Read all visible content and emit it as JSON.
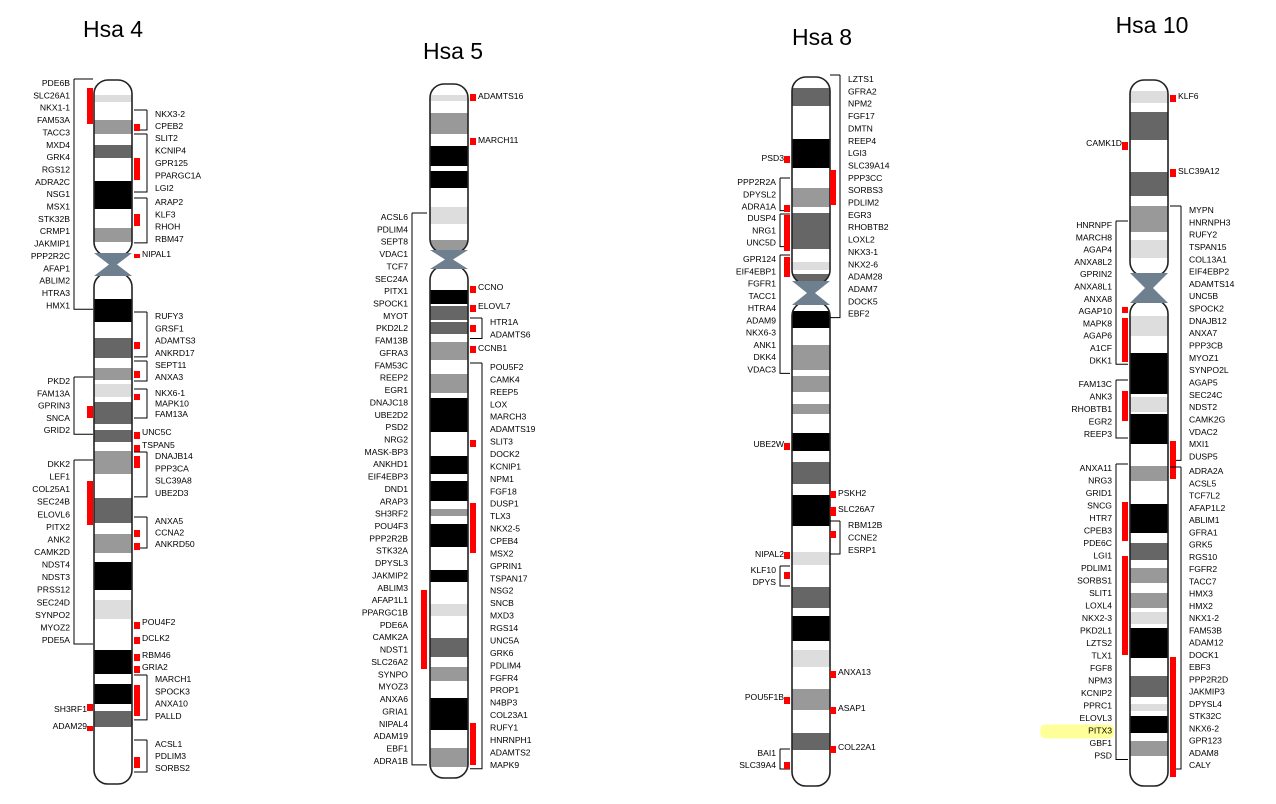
{
  "colors": {
    "band_black": "#000000",
    "band_dark": "#666666",
    "band_mid": "#999999",
    "band_light": "#dddddd",
    "centromere": "#6e7f8f",
    "marker": "#ff0000",
    "highlight": "#ffff99",
    "line": "#000000"
  },
  "chromosomes": [
    {
      "title": "Hsa 4",
      "groups": [
        {
          "side": "left",
          "genes": [
            "PDE6B",
            "SLC26A1",
            "NKX1-1",
            "FAM53A",
            "TACC3",
            "MXD4",
            "GRK4",
            "RGS12",
            "ADRA2C",
            "NSG1",
            "MSX1",
            "STK32B",
            "CRMP1",
            "JAKMIP1",
            "PPP2R2C",
            "AFAP1",
            "ABLIM2",
            "HTRA3",
            "HMX1"
          ]
        },
        {
          "side": "right",
          "genes": [
            "NKX3-2",
            "CPEB2"
          ]
        },
        {
          "side": "right",
          "genes": [
            "SLIT2",
            "KCNIP4",
            "GPR125",
            "PPARGC1A",
            "LGI2"
          ]
        },
        {
          "side": "right",
          "genes": [
            "ARAP2",
            "KLF3",
            "RHOH",
            "RBM47"
          ]
        },
        {
          "side": "right",
          "genes": [
            "NIPAL1"
          ]
        },
        {
          "side": "right",
          "genes": [
            "RUFY3",
            "GRSF1",
            "ADAMTS3",
            "ANKRD17"
          ]
        },
        {
          "side": "right",
          "genes": [
            "SEPT11",
            "ANXA3"
          ]
        },
        {
          "side": "left",
          "genes": [
            "PKD2",
            "FAM13A",
            "GPRIN3",
            "SNCA",
            "GRID2"
          ]
        },
        {
          "side": "right",
          "genes": [
            "NKX6-1",
            "MAPK10",
            "FAM13A"
          ]
        },
        {
          "side": "right",
          "genes": [
            "UNC5C"
          ]
        },
        {
          "side": "right",
          "genes": [
            "TSPAN5"
          ]
        },
        {
          "side": "right",
          "genes": [
            "DNAJB14",
            "PPP3CA",
            "SLC39A8",
            "UBE2D3"
          ]
        },
        {
          "side": "left",
          "genes": [
            "DKK2",
            "LEF1",
            "COL25A1",
            "SEC24B",
            "ELOVL6",
            "PITX2",
            "ANK2",
            "CAMK2D",
            "NDST4",
            "NDST3",
            "PRSS12",
            "SEC24D",
            "SYNPO2",
            "MYOZ2",
            "PDE5A"
          ]
        },
        {
          "side": "right",
          "genes": [
            "ANXA5",
            "CCNA2",
            "ANKRD50"
          ]
        },
        {
          "side": "right",
          "genes": [
            "POU4F2"
          ]
        },
        {
          "side": "right",
          "genes": [
            "DCLK2"
          ]
        },
        {
          "side": "right",
          "genes": [
            "RBM46"
          ]
        },
        {
          "side": "right",
          "genes": [
            "GRIA2"
          ]
        },
        {
          "side": "right",
          "genes": [
            "MARCH1",
            "SPOCK3",
            "ANXA10",
            "PALLD"
          ]
        },
        {
          "side": "left",
          "genes": [
            "SH3RF1"
          ]
        },
        {
          "side": "left",
          "genes": [
            "ADAM29"
          ]
        },
        {
          "side": "right",
          "genes": [
            "ACSL1",
            "PDLIM3",
            "SORBS2"
          ]
        }
      ]
    },
    {
      "title": "Hsa 5",
      "groups": [
        {
          "side": "right",
          "genes": [
            "ADAMTS16"
          ]
        },
        {
          "side": "right",
          "genes": [
            "MARCH11"
          ]
        },
        {
          "side": "left",
          "genes": [
            "ACSL6",
            "PDLIM4",
            "SEPT8",
            "VDAC1",
            "TCF7",
            "SEC24A",
            "PITX1",
            "SPOCK1",
            "MYOT",
            "PKD2L2",
            "FAM13B",
            "GFRA3",
            "FAM53C",
            "REEP2",
            "EGR1",
            "DNAJC18",
            "UBE2D2",
            "PSD2",
            "NRG2",
            "MASK-BP3",
            "ANKHD1",
            "EIF4EBP3",
            "DND1",
            "ARAP3",
            "SH3RF2",
            "POU4F3",
            "PPP2R2B",
            "STK32A",
            "DPYSL3",
            "JAKMIP2",
            "ABLIM3",
            "AFAP1L1",
            "PPARGC1B",
            "PDE6A",
            "CAMK2A",
            "NDST1",
            "SLC26A2",
            "SYNPO",
            "MYOZ3",
            "ANXA6",
            "GRIA1",
            "NIPAL4",
            "ADAM19",
            "EBF1",
            "ADRA1B"
          ]
        },
        {
          "side": "right",
          "genes": [
            "CCNO"
          ]
        },
        {
          "side": "right",
          "genes": [
            "ELOVL7"
          ]
        },
        {
          "side": "right",
          "genes": [
            "HTR1A",
            "ADAMTS6"
          ]
        },
        {
          "side": "right",
          "genes": [
            "CCNB1"
          ]
        },
        {
          "side": "right",
          "genes": [
            "POU5F2",
            "CAMK4",
            "REEP5",
            "LOX",
            "MARCH3",
            "ADAMTS19",
            "SLIT3",
            "DOCK2",
            "KCNIP1",
            "NPM1",
            "FGF18",
            "DUSP1",
            "TLX3",
            "NKX2-5",
            "CPEB4",
            "MSX2",
            "GPRIN1",
            "TSPAN17",
            "NSG2",
            "SNCB",
            "MXD3",
            "RGS14",
            "UNC5A",
            "GRK6",
            "PDLIM4",
            "FGFR4",
            "PROP1",
            "N4BP3",
            "COL23A1",
            "RUFY1",
            "HNRNPH1",
            "ADAMTS2",
            "MAPK9"
          ]
        }
      ]
    },
    {
      "title": "Hsa 8",
      "groups": [
        {
          "side": "right",
          "genes": [
            "LZTS1",
            "GFRA2",
            "NPM2",
            "FGF17",
            "DMTN",
            "REEP4",
            "LGI3",
            "SLC39A14",
            "PPP3CC",
            "SORBS3",
            "PDLIM2",
            "EGR3",
            "RHOBTB2",
            "LOXL2",
            "NKX3-1",
            "NKX2-6",
            "ADAM28",
            "ADAM7",
            "DOCK5",
            "EBF2"
          ]
        },
        {
          "side": "left",
          "genes": [
            "PSD3"
          ]
        },
        {
          "side": "left",
          "genes": [
            "PPP2R2A",
            "DPYSL2",
            "ADRA1A"
          ]
        },
        {
          "side": "left",
          "genes": [
            "DUSP4",
            "NRG1",
            "UNC5D"
          ]
        },
        {
          "side": "left",
          "genes": [
            "GPR124",
            "EIF4EBP1",
            "FGFR1",
            "TACC1",
            "HTRA4",
            "ADAM9",
            "NKX6-3",
            "ANK1",
            "DKK4",
            "VDAC3"
          ]
        },
        {
          "side": "left",
          "genes": [
            "UBE2W"
          ]
        },
        {
          "side": "right",
          "genes": [
            "PSKH2"
          ]
        },
        {
          "side": "right",
          "genes": [
            "SLC26A7"
          ]
        },
        {
          "side": "right",
          "genes": [
            "RBM12B",
            "CCNE2",
            "ESRP1"
          ]
        },
        {
          "side": "left",
          "genes": [
            "NIPAL2"
          ]
        },
        {
          "side": "left",
          "genes": [
            "KLF10",
            "DPYS"
          ]
        },
        {
          "side": "right",
          "genes": [
            "ANXA13"
          ]
        },
        {
          "side": "left",
          "genes": [
            "POU5F1B"
          ]
        },
        {
          "side": "right",
          "genes": [
            "ASAP1"
          ]
        },
        {
          "side": "right",
          "genes": [
            "COL22A1"
          ]
        },
        {
          "side": "left",
          "genes": [
            "BAI1",
            "SLC39A4"
          ]
        }
      ]
    },
    {
      "title": "Hsa 10",
      "groups": [
        {
          "side": "right",
          "genes": [
            "KLF6"
          ]
        },
        {
          "side": "left",
          "genes": [
            "CAMK1D"
          ]
        },
        {
          "side": "right",
          "genes": [
            "SLC39A12"
          ]
        },
        {
          "side": "left",
          "genes": [
            "HNRNPF",
            "MARCH8",
            "AGAP4",
            "ANXA8L2",
            "GPRIN2",
            "ANXA8L1",
            "ANXA8",
            "AGAP10",
            "MAPK8",
            "AGAP6",
            "A1CF",
            "DKK1"
          ]
        },
        {
          "side": "right",
          "genes": [
            "MYPN",
            "HNRNPH3",
            "RUFY2",
            "TSPAN15",
            "COL13A1",
            "EIF4EBP2",
            "ADAMTS14",
            "UNC5B",
            "SPOCK2",
            "DNAJB12",
            "ANXA7",
            "PPP3CB",
            "MYOZ1",
            "SYNPO2L",
            "AGAP5",
            "SEC24C",
            "NDST2",
            "CAMK2G",
            "VDAC2",
            "MXI1",
            "DUSP5"
          ]
        },
        {
          "side": "left",
          "genes": [
            "FAM13C",
            "ANK3",
            "RHOBTB1",
            "EGR2",
            "REEP3"
          ]
        },
        {
          "side": "left",
          "genes": [
            "ANXA11",
            "NRG3",
            "GRID1",
            "SNCG",
            "HTR7",
            "CPEB3",
            "PDE6C",
            "LGI1",
            "PDLIM1",
            "SORBS1",
            "SLIT1",
            "LOXL4",
            "NKX2-3",
            "PKD2L1",
            "LZTS2",
            "TLX1",
            "FGF8",
            "NPM3",
            "KCNIP2",
            "PPRC1",
            "ELOVL3",
            "PITX3",
            "GBF1",
            "PSD"
          ]
        },
        {
          "side": "right",
          "genes": [
            "ADRA2A",
            "ACSL5",
            "TCF7L2",
            "AFAP1L2",
            "ABLIM1",
            "GFRA1",
            "GRK5",
            "RGS10",
            "FGFR2",
            "TACC7",
            "HMX3",
            "HMX2",
            "NKX1-2",
            "FAM53B",
            "ADAM12",
            "DOCK1",
            "EBF3",
            "PPP2R2D",
            "JAKMIP3",
            "DPYSL4",
            "STK32C",
            "NKX6-2",
            "GPR123",
            "ADAM8",
            "CALY"
          ]
        }
      ],
      "highlighted_gene": "PITX3"
    }
  ]
}
